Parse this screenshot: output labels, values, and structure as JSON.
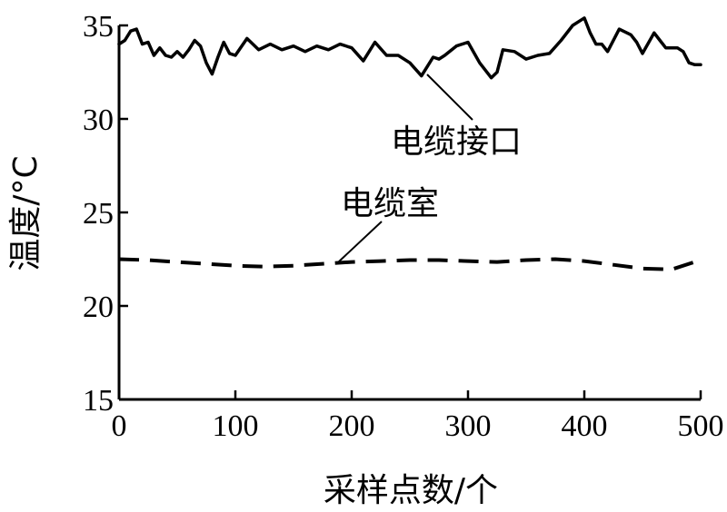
{
  "chart_data": {
    "type": "line",
    "xlabel": "采样点数/个",
    "ylabel": "温度/°C",
    "xlim": [
      0,
      500
    ],
    "ylim": [
      15,
      35
    ],
    "xticks": [
      0,
      100,
      200,
      300,
      400,
      500
    ],
    "yticks": [
      15,
      20,
      25,
      30,
      35
    ],
    "grid": false,
    "series": [
      {
        "name": "电缆接口",
        "style": "solid",
        "color": "#000000",
        "x": [
          0,
          5,
          10,
          15,
          20,
          25,
          30,
          35,
          40,
          45,
          50,
          55,
          60,
          65,
          70,
          75,
          80,
          85,
          90,
          95,
          100,
          110,
          120,
          130,
          140,
          150,
          160,
          170,
          180,
          190,
          200,
          210,
          220,
          230,
          240,
          250,
          260,
          265,
          270,
          275,
          280,
          290,
          300,
          310,
          320,
          325,
          330,
          340,
          350,
          360,
          370,
          380,
          390,
          400,
          405,
          410,
          415,
          420,
          430,
          440,
          445,
          450,
          460,
          465,
          470,
          475,
          480,
          485,
          490,
          495,
          500
        ],
        "y": [
          34.0,
          34.2,
          34.7,
          34.8,
          34.0,
          34.1,
          33.4,
          33.8,
          33.4,
          33.3,
          33.6,
          33.3,
          33.7,
          34.2,
          33.9,
          33.0,
          32.4,
          33.3,
          34.1,
          33.5,
          33.4,
          34.3,
          33.7,
          34.0,
          33.7,
          33.9,
          33.6,
          33.9,
          33.7,
          34.0,
          33.8,
          33.1,
          34.1,
          33.4,
          33.4,
          33.0,
          32.3,
          32.8,
          33.3,
          33.2,
          33.4,
          33.9,
          34.1,
          33.0,
          32.2,
          32.5,
          33.7,
          33.6,
          33.2,
          33.4,
          33.5,
          34.2,
          35.0,
          35.4,
          34.6,
          34.0,
          34.0,
          33.6,
          34.8,
          34.5,
          34.1,
          33.5,
          34.6,
          34.2,
          33.8,
          33.8,
          33.8,
          33.6,
          33.0,
          32.9,
          32.9
        ]
      },
      {
        "name": "电缆室",
        "style": "dashed",
        "color": "#000000",
        "x": [
          0,
          25,
          50,
          75,
          100,
          125,
          150,
          175,
          200,
          225,
          250,
          275,
          300,
          325,
          350,
          375,
          400,
          425,
          450,
          475,
          500
        ],
        "y": [
          22.5,
          22.45,
          22.35,
          22.25,
          22.15,
          22.1,
          22.15,
          22.25,
          22.35,
          22.4,
          22.45,
          22.45,
          22.4,
          22.35,
          22.45,
          22.5,
          22.4,
          22.2,
          22.0,
          21.95,
          22.45
        ]
      }
    ],
    "annotations": [
      {
        "text": "电缆接口",
        "target_series": 0
      },
      {
        "text": "电缆室",
        "target_series": 1
      }
    ]
  }
}
